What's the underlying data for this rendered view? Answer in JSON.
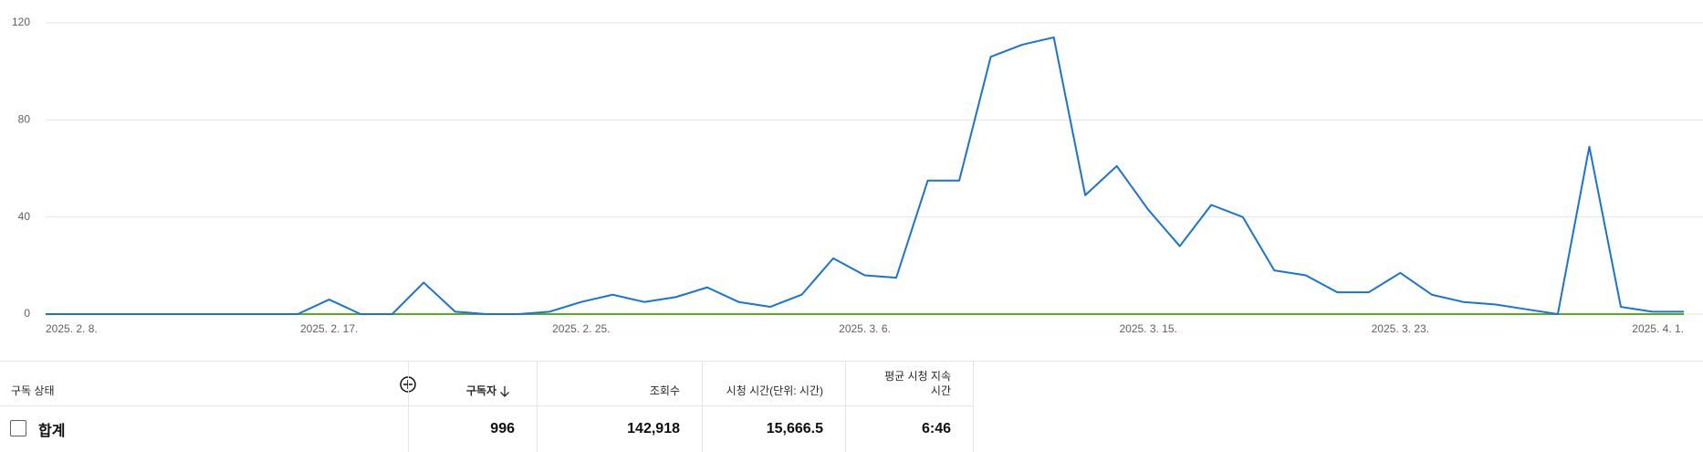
{
  "chart_data": {
    "type": "line",
    "categories": [
      "2025. 2. 8.",
      null,
      null,
      null,
      null,
      null,
      null,
      null,
      null,
      "2025. 2. 17.",
      null,
      null,
      null,
      null,
      null,
      null,
      null,
      "2025. 2. 25.",
      null,
      null,
      null,
      null,
      null,
      null,
      null,
      null,
      "2025. 3. 6.",
      null,
      null,
      null,
      null,
      null,
      null,
      null,
      null,
      "2025. 3. 15.",
      null,
      null,
      null,
      null,
      null,
      null,
      null,
      "2025. 3. 23.",
      null,
      null,
      null,
      null,
      null,
      null,
      null,
      null,
      "2025. 4. 1."
    ],
    "series": [
      {
        "color": "#1a73d4",
        "values": [
          0,
          0,
          0,
          0,
          0,
          0,
          0,
          0,
          0,
          6,
          0,
          0,
          13,
          1,
          0,
          0,
          1,
          5,
          8,
          5,
          7,
          11,
          5,
          3,
          8,
          23,
          16,
          15,
          55,
          55,
          106,
          111,
          114,
          49,
          61,
          43,
          28,
          45,
          40,
          18,
          16,
          9,
          9,
          17,
          8,
          5,
          4,
          2,
          0,
          69,
          3,
          1,
          1
        ]
      },
      {
        "color": "#5bab1e",
        "values": [
          0,
          0,
          0,
          0,
          0,
          0,
          0,
          0,
          0,
          0,
          0,
          0,
          0,
          0,
          0,
          0,
          0,
          0,
          0,
          0,
          0,
          0,
          0,
          0,
          0,
          0,
          0,
          0,
          0,
          0,
          0,
          0,
          0,
          0,
          0,
          0,
          0,
          0,
          0,
          0,
          0,
          0,
          0,
          0,
          0,
          0,
          0,
          0,
          0,
          0,
          0,
          0,
          0
        ]
      }
    ],
    "ylim": [
      0,
      120
    ],
    "yticks": [
      0,
      40,
      80,
      120
    ],
    "grid": true
  },
  "table": {
    "header": [
      "구독 상태",
      "구독자",
      "조회수",
      "시청 시간(단위: 시간)",
      "평균 시청 지속 시간"
    ],
    "rows": [
      [
        "합계",
        "996",
        "142,918",
        "15,666.5",
        "6:46"
      ]
    ]
  }
}
